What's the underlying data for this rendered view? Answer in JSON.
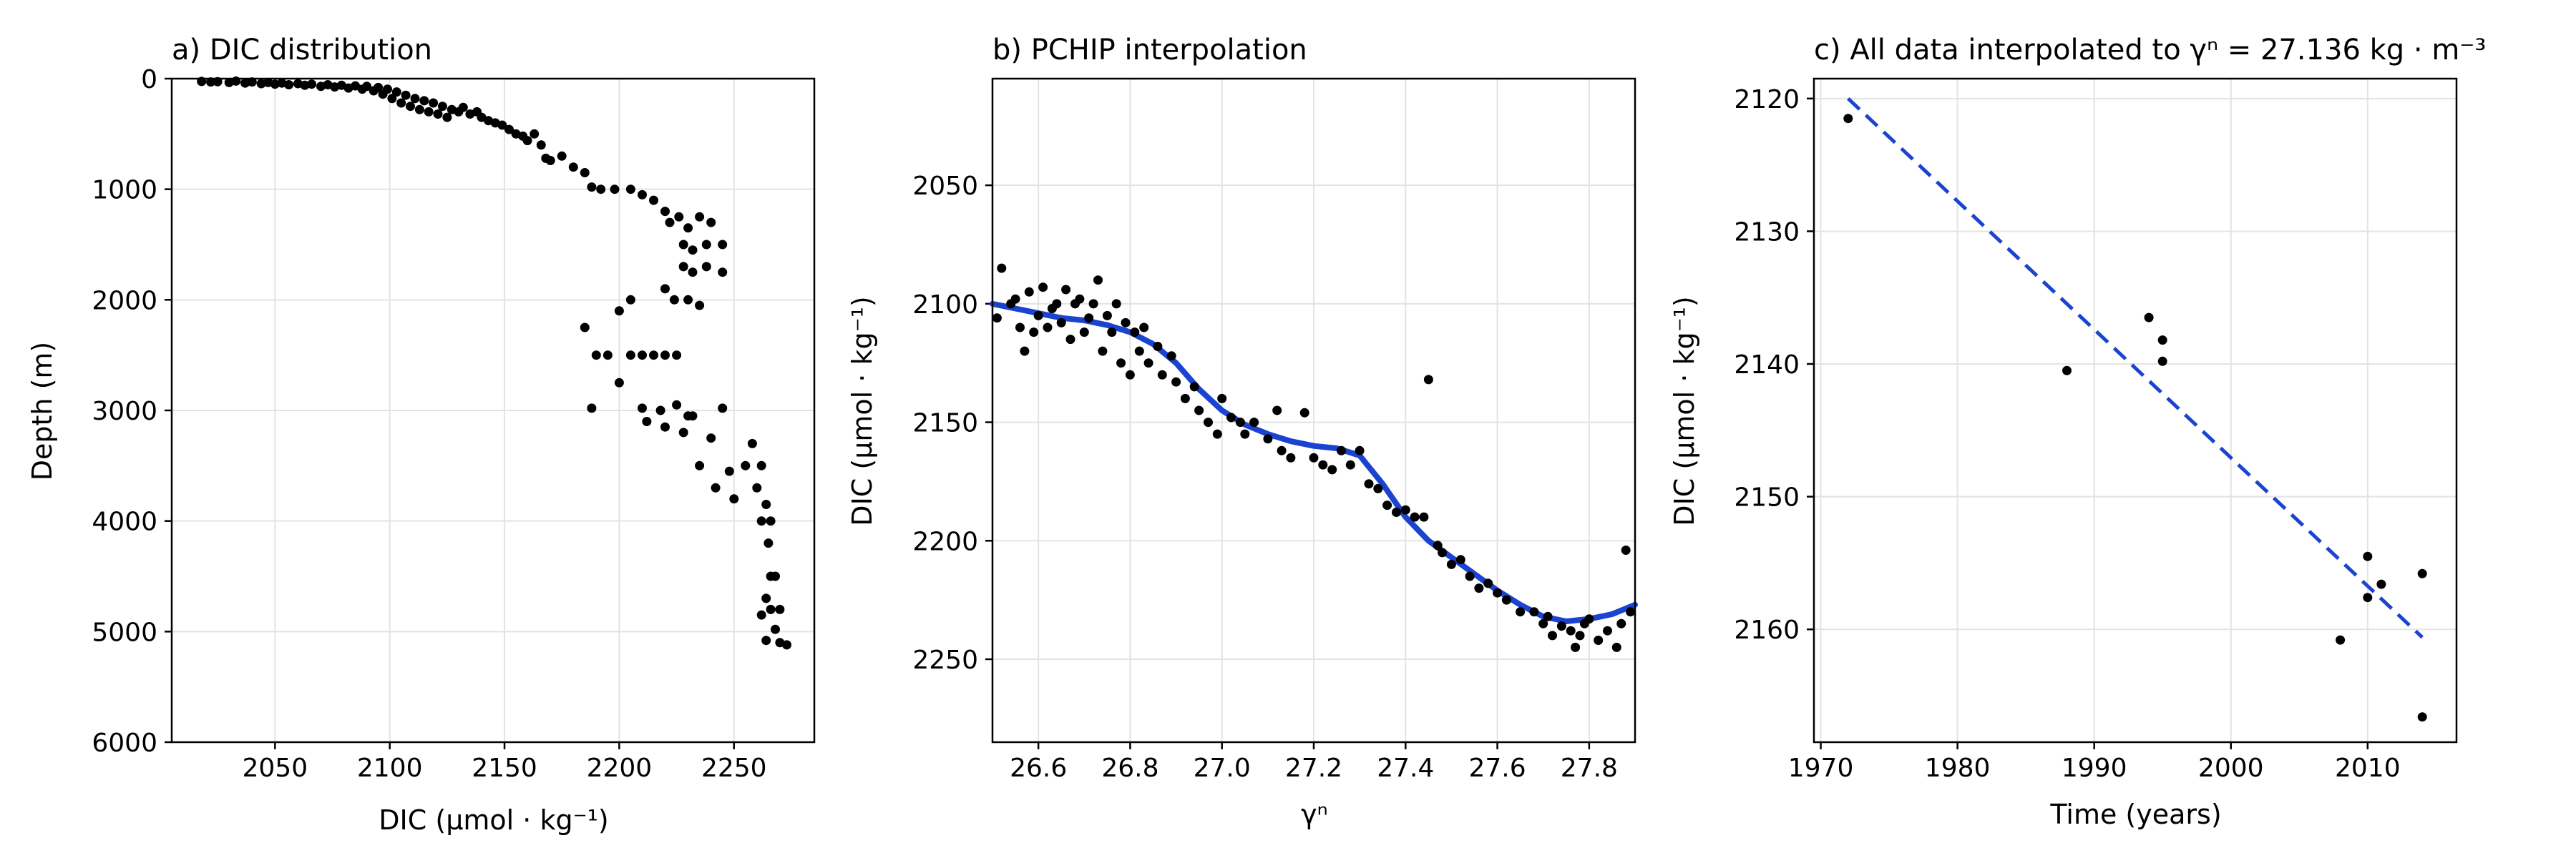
{
  "colors": {
    "points": "#000000",
    "line": "#1a44d0",
    "grid": "#e3e3e3"
  },
  "chart_data": [
    {
      "type": "scatter",
      "title": "a) DIC distribution",
      "xlabel": "DIC (µmol · kg⁻¹)",
      "ylabel": "Depth (m)",
      "xlim": [
        2005,
        2285
      ],
      "ylim": [
        6000,
        0
      ],
      "y_inverted": true,
      "xticks": [
        2050,
        2100,
        2150,
        2200,
        2250
      ],
      "yticks": [
        0,
        1000,
        2000,
        3000,
        4000,
        5000,
        6000
      ],
      "grid": true,
      "points": [
        [
          2018,
          25
        ],
        [
          2022,
          30
        ],
        [
          2025,
          28
        ],
        [
          2030,
          35
        ],
        [
          2033,
          22
        ],
        [
          2037,
          40
        ],
        [
          2040,
          30
        ],
        [
          2044,
          45
        ],
        [
          2047,
          35
        ],
        [
          2050,
          50
        ],
        [
          2053,
          40
        ],
        [
          2056,
          55
        ],
        [
          2060,
          45
        ],
        [
          2063,
          60
        ],
        [
          2066,
          50
        ],
        [
          2070,
          70
        ],
        [
          2073,
          55
        ],
        [
          2076,
          75
        ],
        [
          2079,
          60
        ],
        [
          2082,
          85
        ],
        [
          2085,
          65
        ],
        [
          2088,
          95
        ],
        [
          2090,
          70
        ],
        [
          2093,
          110
        ],
        [
          2095,
          80
        ],
        [
          2097,
          140
        ],
        [
          2099,
          95
        ],
        [
          2101,
          180
        ],
        [
          2103,
          120
        ],
        [
          2105,
          220
        ],
        [
          2107,
          150
        ],
        [
          2109,
          250
        ],
        [
          2111,
          180
        ],
        [
          2113,
          280
        ],
        [
          2115,
          200
        ],
        [
          2117,
          300
        ],
        [
          2119,
          220
        ],
        [
          2121,
          320
        ],
        [
          2123,
          250
        ],
        [
          2125,
          350
        ],
        [
          2127,
          280
        ],
        [
          2130,
          300
        ],
        [
          2132,
          260
        ],
        [
          2135,
          320
        ],
        [
          2138,
          300
        ],
        [
          2140,
          350
        ],
        [
          2143,
          380
        ],
        [
          2146,
          400
        ],
        [
          2149,
          420
        ],
        [
          2152,
          460
        ],
        [
          2155,
          500
        ],
        [
          2158,
          520
        ],
        [
          2160,
          560
        ],
        [
          2163,
          500
        ],
        [
          2166,
          600
        ],
        [
          2168,
          720
        ],
        [
          2170,
          740
        ],
        [
          2175,
          700
        ],
        [
          2180,
          800
        ],
        [
          2185,
          850
        ],
        [
          2188,
          980
        ],
        [
          2192,
          1000
        ],
        [
          2198,
          1000
        ],
        [
          2205,
          1000
        ],
        [
          2210,
          1050
        ],
        [
          2215,
          1100
        ],
        [
          2220,
          1200
        ],
        [
          2222,
          1300
        ],
        [
          2226,
          1250
        ],
        [
          2230,
          1350
        ],
        [
          2235,
          1250
        ],
        [
          2240,
          1300
        ],
        [
          2228,
          1500
        ],
        [
          2232,
          1550
        ],
        [
          2238,
          1500
        ],
        [
          2245,
          1500
        ],
        [
          2228,
          1700
        ],
        [
          2232,
          1750
        ],
        [
          2238,
          1700
        ],
        [
          2245,
          1750
        ],
        [
          2220,
          1900
        ],
        [
          2224,
          2000
        ],
        [
          2230,
          2000
        ],
        [
          2235,
          2050
        ],
        [
          2205,
          2000
        ],
        [
          2200,
          2100
        ],
        [
          2185,
          2250
        ],
        [
          2190,
          2500
        ],
        [
          2195,
          2500
        ],
        [
          2200,
          2750
        ],
        [
          2205,
          2500
        ],
        [
          2210,
          2500
        ],
        [
          2215,
          2500
        ],
        [
          2220,
          2500
        ],
        [
          2225,
          2500
        ],
        [
          2188,
          2980
        ],
        [
          2210,
          2980
        ],
        [
          2212,
          3100
        ],
        [
          2218,
          3000
        ],
        [
          2220,
          3150
        ],
        [
          2225,
          2950
        ],
        [
          2230,
          3050
        ],
        [
          2228,
          3200
        ],
        [
          2232,
          3050
        ],
        [
          2245,
          2980
        ],
        [
          2235,
          3500
        ],
        [
          2240,
          3250
        ],
        [
          2242,
          3700
        ],
        [
          2248,
          3550
        ],
        [
          2250,
          3800
        ],
        [
          2255,
          3500
        ],
        [
          2258,
          3300
        ],
        [
          2262,
          3500
        ],
        [
          2260,
          3700
        ],
        [
          2264,
          3850
        ],
        [
          2262,
          4000
        ],
        [
          2266,
          4000
        ],
        [
          2265,
          4200
        ],
        [
          2266,
          4500
        ],
        [
          2268,
          4500
        ],
        [
          2264,
          4700
        ],
        [
          2266,
          4800
        ],
        [
          2270,
          4800
        ],
        [
          2262,
          4850
        ],
        [
          2268,
          4980
        ],
        [
          2264,
          5080
        ],
        [
          2270,
          5100
        ],
        [
          2273,
          5120
        ]
      ]
    },
    {
      "type": "scatter",
      "title": "b) PCHIP interpolation",
      "xlabel": "γⁿ",
      "ylabel": "DIC (µmol · kg⁻¹)",
      "xlim": [
        26.5,
        27.9
      ],
      "ylim": [
        2005,
        2285
      ],
      "xticks": [
        26.6,
        26.8,
        27.0,
        27.2,
        27.4,
        27.6,
        27.8
      ],
      "yticks": [
        2050,
        2100,
        2150,
        2200,
        2250
      ],
      "grid": true,
      "points": [
        [
          26.51,
          2106
        ],
        [
          26.52,
          2085
        ],
        [
          26.54,
          2100
        ],
        [
          26.55,
          2098
        ],
        [
          26.56,
          2110
        ],
        [
          26.57,
          2120
        ],
        [
          26.58,
          2095
        ],
        [
          26.59,
          2112
        ],
        [
          26.6,
          2105
        ],
        [
          26.61,
          2093
        ],
        [
          26.62,
          2110
        ],
        [
          26.63,
          2102
        ],
        [
          26.64,
          2100
        ],
        [
          26.65,
          2108
        ],
        [
          26.66,
          2094
        ],
        [
          26.67,
          2115
        ],
        [
          26.68,
          2100
        ],
        [
          26.69,
          2098
        ],
        [
          26.7,
          2112
        ],
        [
          26.71,
          2106
        ],
        [
          26.72,
          2100
        ],
        [
          26.73,
          2090
        ],
        [
          26.74,
          2120
        ],
        [
          26.75,
          2105
        ],
        [
          26.76,
          2112
        ],
        [
          26.77,
          2100
        ],
        [
          26.78,
          2125
        ],
        [
          26.79,
          2108
        ],
        [
          26.8,
          2130
        ],
        [
          26.81,
          2112
        ],
        [
          26.82,
          2120
        ],
        [
          26.83,
          2110
        ],
        [
          26.84,
          2125
        ],
        [
          26.86,
          2118
        ],
        [
          26.87,
          2130
        ],
        [
          26.89,
          2122
        ],
        [
          26.9,
          2133
        ],
        [
          26.92,
          2140
        ],
        [
          26.94,
          2135
        ],
        [
          26.95,
          2145
        ],
        [
          26.97,
          2150
        ],
        [
          26.99,
          2155
        ],
        [
          27.0,
          2140
        ],
        [
          27.02,
          2148
        ],
        [
          27.04,
          2150
        ],
        [
          27.05,
          2155
        ],
        [
          27.07,
          2150
        ],
        [
          27.1,
          2157
        ],
        [
          27.12,
          2145
        ],
        [
          27.13,
          2162
        ],
        [
          27.15,
          2165
        ],
        [
          27.18,
          2146
        ],
        [
          27.2,
          2165
        ],
        [
          27.22,
          2168
        ],
        [
          27.24,
          2170
        ],
        [
          27.26,
          2162
        ],
        [
          27.28,
          2168
        ],
        [
          27.3,
          2162
        ],
        [
          27.32,
          2176
        ],
        [
          27.34,
          2178
        ],
        [
          27.36,
          2185
        ],
        [
          27.38,
          2188
        ],
        [
          27.4,
          2187
        ],
        [
          27.42,
          2190
        ],
        [
          27.44,
          2190
        ],
        [
          27.45,
          2132
        ],
        [
          27.47,
          2202
        ],
        [
          27.48,
          2205
        ],
        [
          27.5,
          2210
        ],
        [
          27.52,
          2208
        ],
        [
          27.54,
          2215
        ],
        [
          27.56,
          2220
        ],
        [
          27.58,
          2218
        ],
        [
          27.6,
          2222
        ],
        [
          27.62,
          2225
        ],
        [
          27.65,
          2230
        ],
        [
          27.68,
          2230
        ],
        [
          27.7,
          2235
        ],
        [
          27.71,
          2232
        ],
        [
          27.72,
          2240
        ],
        [
          27.74,
          2236
        ],
        [
          27.76,
          2238
        ],
        [
          27.77,
          2245
        ],
        [
          27.78,
          2240
        ],
        [
          27.79,
          2235
        ],
        [
          27.8,
          2233
        ],
        [
          27.82,
          2242
        ],
        [
          27.84,
          2238
        ],
        [
          27.86,
          2245
        ],
        [
          27.87,
          2235
        ],
        [
          27.88,
          2204
        ],
        [
          27.89,
          2230
        ]
      ],
      "curve_name": "PCHIP",
      "curve": [
        [
          26.5,
          2100
        ],
        [
          26.55,
          2102
        ],
        [
          26.6,
          2104
        ],
        [
          26.65,
          2106
        ],
        [
          26.7,
          2107
        ],
        [
          26.75,
          2109
        ],
        [
          26.8,
          2112
        ],
        [
          26.85,
          2117
        ],
        [
          26.9,
          2125
        ],
        [
          26.95,
          2136
        ],
        [
          27.0,
          2145
        ],
        [
          27.05,
          2151
        ],
        [
          27.1,
          2155
        ],
        [
          27.15,
          2158
        ],
        [
          27.2,
          2160
        ],
        [
          27.25,
          2161
        ],
        [
          27.3,
          2164
        ],
        [
          27.35,
          2176
        ],
        [
          27.4,
          2190
        ],
        [
          27.45,
          2200
        ],
        [
          27.5,
          2207
        ],
        [
          27.55,
          2214
        ],
        [
          27.6,
          2221
        ],
        [
          27.65,
          2227
        ],
        [
          27.7,
          2232
        ],
        [
          27.75,
          2234
        ],
        [
          27.8,
          2233
        ],
        [
          27.85,
          2231
        ],
        [
          27.9,
          2227
        ]
      ]
    },
    {
      "type": "scatter",
      "title": "c) All data interpolated to γⁿ = 27.136 kg  · m⁻³",
      "xlabel": "Time (years)",
      "ylabel": "DIC (µmol · kg⁻¹)",
      "xlim": [
        1969.5,
        2016.5
      ],
      "ylim": [
        2118.5,
        2168.5
      ],
      "xticks": [
        1970,
        1980,
        1990,
        2000,
        2010
      ],
      "yticks": [
        2120,
        2130,
        2140,
        2150,
        2160
      ],
      "grid": true,
      "points": [
        [
          1972,
          2121.5
        ],
        [
          1988,
          2140.5
        ],
        [
          1994,
          2136.5
        ],
        [
          1995,
          2138.2
        ],
        [
          1995,
          2139.8
        ],
        [
          2008,
          2160.8
        ],
        [
          2010,
          2157.6
        ],
        [
          2010,
          2154.5
        ],
        [
          2011,
          2156.6
        ],
        [
          2014,
          2166.6
        ],
        [
          2014,
          2155.8
        ]
      ],
      "trend_name": "linear fit",
      "trend": [
        [
          1972,
          2120.0
        ],
        [
          2014,
          2160.6
        ]
      ]
    }
  ]
}
